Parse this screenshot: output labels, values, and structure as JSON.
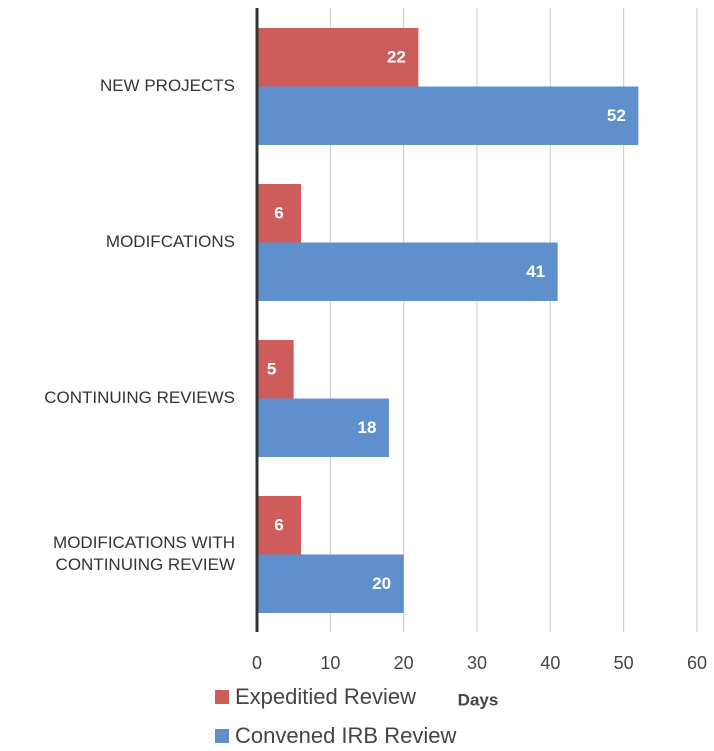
{
  "chart_data": {
    "type": "barh",
    "categories": [
      "NEW PROJECTS",
      "MODIFCATIONS",
      "CONTINUING REVIEWS",
      "MODIFICATIONS WITH CONTINUING REVIEW"
    ],
    "series": [
      {
        "name": "Expeditied Review",
        "color": "#cd5c5a",
        "values": [
          22,
          6,
          5,
          6
        ]
      },
      {
        "name": "Convened IRB Review",
        "color": "#5f8fcc",
        "values": [
          52,
          41,
          18,
          20
        ]
      }
    ],
    "xlabel": "Days",
    "xlim": [
      0,
      60
    ],
    "xticks": [
      0,
      10,
      20,
      30,
      40,
      50,
      60
    ],
    "grid": true
  }
}
